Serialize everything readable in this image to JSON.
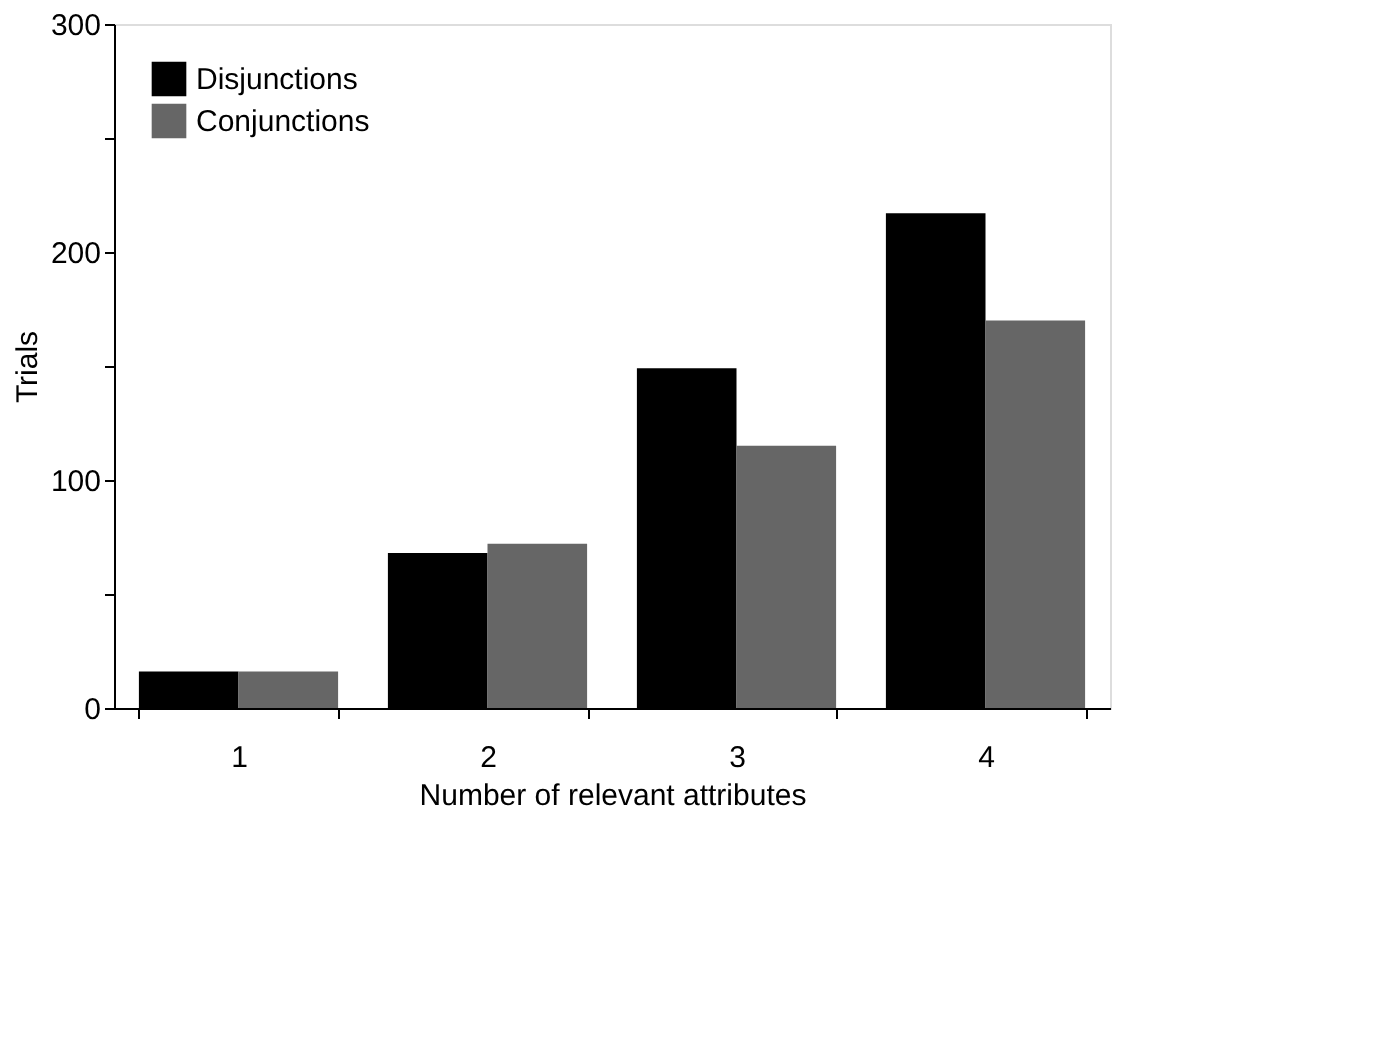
{
  "chart_data": {
    "type": "bar",
    "xlabel": "Number of relevant attributes",
    "ylabel": "Trials",
    "categories": [
      "1",
      "2",
      "3",
      "4"
    ],
    "series": [
      {
        "name": "Disjunctions",
        "color": "#000000",
        "values": [
          16,
          68,
          149,
          217
        ]
      },
      {
        "name": "Conjunctions",
        "color": "#666666",
        "values": [
          16,
          72,
          115,
          170
        ]
      }
    ],
    "ylim": [
      0,
      300
    ],
    "yticks": [
      0,
      {
        "value": 50,
        "label": null
      },
      100,
      {
        "value": 150,
        "label": null
      },
      200,
      {
        "value": 250,
        "label": null
      },
      300
    ],
    "grid": false,
    "legend": "top left"
  }
}
